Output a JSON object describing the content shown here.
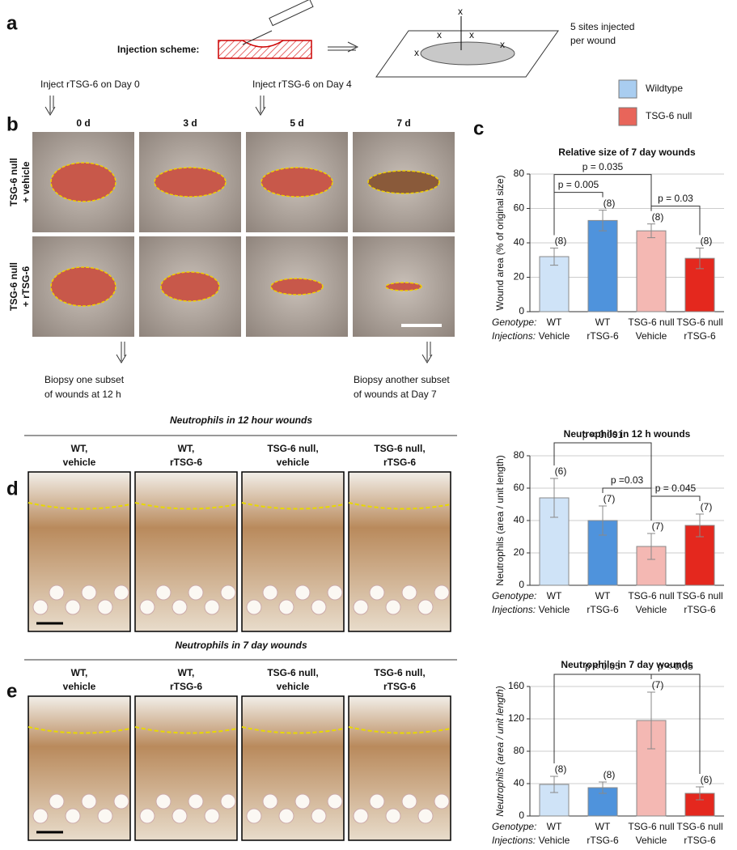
{
  "panel_a": {
    "label": "a",
    "scheme_label": "Injection scheme:",
    "sites_note": [
      "5 sites injected",
      "per wound"
    ]
  },
  "panel_b": {
    "label": "b",
    "top_notes": [
      "Inject rTSG-6 on Day 0",
      "Inject rTSG-6 on Day 4"
    ],
    "columns": [
      "0 d",
      "3 d",
      "5 d",
      "7 d"
    ],
    "rows": [
      [
        "TSG-6  null",
        "+ vehicle"
      ],
      [
        "TSG-6  null",
        "+ rTSG-6"
      ]
    ],
    "bottom_notes": [
      [
        "Biopsy one subset",
        "of wounds at 12 h"
      ],
      [
        "Biopsy another subset",
        "of wounds at Day 7"
      ]
    ]
  },
  "legend": [
    {
      "name": "Wildtype",
      "color": "#a9cdf0"
    },
    {
      "name": "TSG-6 null",
      "color": "#e8655a"
    }
  ],
  "panel_d": {
    "label": "d",
    "title": "Neutrophils in 12 hour wounds",
    "columns": [
      [
        "WT,",
        "vehicle"
      ],
      [
        "WT,",
        "rTSG-6"
      ],
      [
        "TSG-6 null,",
        "vehicle"
      ],
      [
        "TSG-6 null,",
        "rTSG-6"
      ]
    ]
  },
  "panel_e": {
    "label": "e",
    "title": "Neutrophils in 7 day wounds",
    "columns": [
      [
        "WT,",
        "vehicle"
      ],
      [
        "WT,",
        "rTSG-6"
      ],
      [
        "TSG-6 null,",
        "vehicle"
      ],
      [
        "TSG-6 null,",
        "rTSG-6"
      ]
    ]
  },
  "chart_data": [
    {
      "type": "bar",
      "label": "c",
      "title": "Relative size of 7 day wounds",
      "y_label": "Wound area  (% of original size)",
      "row_labels": [
        "Genotype:",
        "Injections:"
      ],
      "genotype": [
        "WT",
        "WT",
        "TSG-6 null",
        "TSG-6 null"
      ],
      "injections": [
        "Vehicle",
        "rTSG-6",
        "Vehicle",
        "rTSG-6"
      ],
      "values": [
        32,
        53,
        47,
        31
      ],
      "errors": [
        5,
        6,
        4,
        6
      ],
      "n_labels": [
        "(8)",
        "(8)",
        "(8)",
        "(8)"
      ],
      "colors": [
        "#cfe3f7",
        "#4f93dc",
        "#f4b8b3",
        "#e4281e"
      ],
      "ylim": [
        0,
        80
      ],
      "yticks": [
        0,
        20,
        40,
        60,
        80
      ],
      "grid": true,
      "comparisons": [
        {
          "from": 0,
          "to": 1,
          "label": "p = 0.005"
        },
        {
          "from": 0,
          "to": 2,
          "label": "p = 0.035"
        },
        {
          "from": 2,
          "to": 3,
          "label": "p = 0.03"
        }
      ]
    },
    {
      "type": "bar",
      "title": "Neutrophils  in 12 h wounds",
      "y_label": "Neutrophils (area / unit length)",
      "row_labels": [
        "Genotype:",
        "Injections:"
      ],
      "genotype": [
        "WT",
        "WT",
        "TSG-6 null",
        "TSG-6 null"
      ],
      "injections": [
        "Vehicle",
        "rTSG-6",
        "Vehicle",
        "rTSG-6"
      ],
      "values": [
        54,
        40,
        24,
        37
      ],
      "errors": [
        12,
        9,
        8,
        7
      ],
      "n_labels": [
        "(6)",
        "(7)",
        "(7)",
        "(7)"
      ],
      "colors": [
        "#cfe3f7",
        "#4f93dc",
        "#f4b8b3",
        "#e4281e"
      ],
      "ylim": [
        0,
        80
      ],
      "yticks": [
        0,
        20,
        40,
        60,
        80
      ],
      "grid": true,
      "comparisons": [
        {
          "from": 1,
          "to": 2,
          "label": "p =0.03"
        },
        {
          "from": 0,
          "to": 2,
          "label": "p < 0.001"
        },
        {
          "from": 2,
          "to": 3,
          "label": "p = 0.045"
        }
      ]
    },
    {
      "type": "bar",
      "title": "Neutrophils in 7 day wounds",
      "y_label": "Neutrophils (area / unit length)",
      "row_labels": [
        "Genotype:",
        "Injections:"
      ],
      "genotype": [
        "WT",
        "WT",
        "TSG-6 null",
        "TSG-6 null"
      ],
      "injections": [
        "Vehicle",
        "rTSG-6",
        "Vehicle",
        "rTSG-6"
      ],
      "values": [
        39,
        35,
        118,
        28
      ],
      "errors": [
        10,
        7,
        35,
        8
      ],
      "n_labels": [
        "(8)",
        "(8)",
        "(7)",
        "(6)"
      ],
      "colors": [
        "#cfe3f7",
        "#4f93dc",
        "#f4b8b3",
        "#e4281e"
      ],
      "ylim": [
        0,
        160
      ],
      "yticks": [
        0,
        40,
        80,
        120,
        160
      ],
      "grid": true,
      "comparisons": [
        {
          "from": 0,
          "to": 2,
          "label": "p < 0.05"
        },
        {
          "from": 2,
          "to": 3,
          "label": "p < 0.05"
        }
      ]
    }
  ]
}
